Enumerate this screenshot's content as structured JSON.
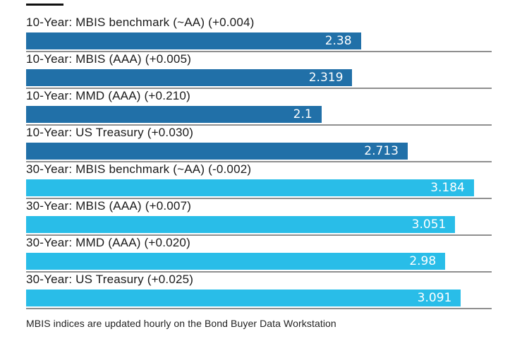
{
  "chart_data": {
    "type": "bar",
    "orientation": "horizontal",
    "title": "",
    "xlabel": "",
    "ylabel": "",
    "axis_max": 3.31,
    "grid": false,
    "legend": false,
    "bars": [
      {
        "label": "10-Year: MBIS benchmark (~AA) (+0.004)",
        "value": 2.38,
        "value_label": "2.38",
        "change": 0.004,
        "group": "10-year",
        "color": "#2170a8"
      },
      {
        "label": "10-Year: MBIS (AAA) (+0.005)",
        "value": 2.319,
        "value_label": "2.319",
        "change": 0.005,
        "group": "10-year",
        "color": "#2170a8"
      },
      {
        "label": "10-Year: MMD (AAA) (+0.210)",
        "value": 2.1,
        "value_label": "2.1",
        "change": 0.21,
        "group": "10-year",
        "color": "#2170a8"
      },
      {
        "label": "10-Year: US Treasury (+0.030)",
        "value": 2.713,
        "value_label": "2.713",
        "change": 0.03,
        "group": "10-year",
        "color": "#2170a8"
      },
      {
        "label": "30-Year: MBIS benchmark (~AA) (-0.002)",
        "value": 3.184,
        "value_label": "3.184",
        "change": -0.002,
        "group": "30-year",
        "color": "#29bde8"
      },
      {
        "label": "30-Year: MBIS (AAA) (+0.007)",
        "value": 3.051,
        "value_label": "3.051",
        "change": 0.007,
        "group": "30-year",
        "color": "#29bde8"
      },
      {
        "label": "30-Year: MMD (AAA) (+0.020)",
        "value": 2.98,
        "value_label": "2.98",
        "change": 0.02,
        "group": "30-year",
        "color": "#29bde8"
      },
      {
        "label": "30-Year: US Treasury (+0.025)",
        "value": 3.091,
        "value_label": "3.091",
        "change": 0.025,
        "group": "30-year",
        "color": "#29bde8"
      }
    ],
    "colors": {
      "ten_year_bar": "#2170a8",
      "thirty_year_bar": "#29bde8",
      "separator_line": "#8f8f8f",
      "kicker_rule": "#101010",
      "label_text": "#1a1a1a",
      "value_text": "#ffffff",
      "footnote_text": "#222222"
    },
    "footnote": "MBIS indices are updated hourly on the Bond Buyer Data Workstation"
  }
}
